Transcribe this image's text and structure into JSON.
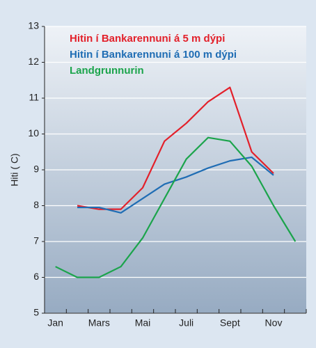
{
  "chart_data": {
    "type": "line",
    "ylabel": "Hiti ( C)",
    "categories": [
      "Jan",
      null,
      "Mars",
      null,
      "Mai",
      null,
      "Juli",
      null,
      "Sept",
      null,
      "Nov",
      null
    ],
    "series": [
      {
        "name": "Hitin í Bankarennuni á 5 m dýpi",
        "color": "#e3202a",
        "values": [
          null,
          8.0,
          7.9,
          7.9,
          8.5,
          9.8,
          10.3,
          10.9,
          11.3,
          9.5,
          8.9,
          null
        ]
      },
      {
        "name": "Hitin í Bankarennuni á 100 m dýpi",
        "color": "#1f6db4",
        "values": [
          null,
          7.95,
          7.95,
          7.8,
          8.2,
          8.6,
          8.8,
          9.05,
          9.25,
          9.35,
          8.85,
          null
        ]
      },
      {
        "name": "Landgrunnurin",
        "color": "#1ba44b",
        "values": [
          6.3,
          6.0,
          6.0,
          6.3,
          7.1,
          8.2,
          9.3,
          9.9,
          9.8,
          9.1,
          8.0,
          7.0
        ]
      }
    ],
    "ylim": [
      5,
      13
    ],
    "yticks": [
      5,
      6,
      7,
      8,
      9,
      10,
      11,
      12,
      13
    ],
    "grid": true,
    "legend": "top-left"
  }
}
